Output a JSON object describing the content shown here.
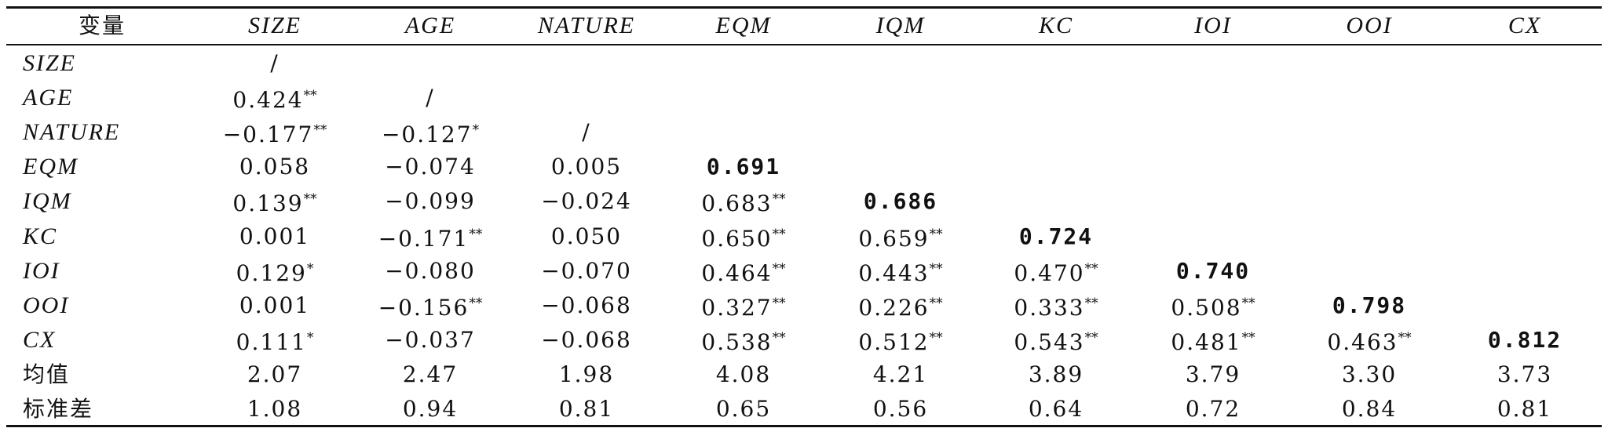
{
  "table": {
    "header": [
      "变量",
      "SIZE",
      "AGE",
      "NATURE",
      "EQM",
      "IQM",
      "KC",
      "IOI",
      "OOI",
      "CX"
    ],
    "rows": [
      {
        "label": "SIZE",
        "cells": [
          {
            "v": "/"
          }
        ]
      },
      {
        "label": "AGE",
        "cells": [
          {
            "v": "0.424",
            "sig": "**"
          },
          {
            "v": "/"
          }
        ]
      },
      {
        "label": "NATURE",
        "cells": [
          {
            "v": "−0.177",
            "sig": "**"
          },
          {
            "v": "−0.127",
            "sig": "*"
          },
          {
            "v": "/"
          }
        ]
      },
      {
        "label": "EQM",
        "cells": [
          {
            "v": "0.058"
          },
          {
            "v": "−0.074"
          },
          {
            "v": "0.005"
          },
          {
            "v": "0.691",
            "bold": true
          }
        ]
      },
      {
        "label": "IQM",
        "cells": [
          {
            "v": "0.139",
            "sig": "**"
          },
          {
            "v": "−0.099"
          },
          {
            "v": "−0.024"
          },
          {
            "v": "0.683",
            "sig": "**"
          },
          {
            "v": "0.686",
            "bold": true
          }
        ]
      },
      {
        "label": "KC",
        "cells": [
          {
            "v": "0.001"
          },
          {
            "v": "−0.171",
            "sig": "**"
          },
          {
            "v": "0.050"
          },
          {
            "v": "0.650",
            "sig": "**"
          },
          {
            "v": "0.659",
            "sig": "**"
          },
          {
            "v": "0.724",
            "bold": true
          }
        ]
      },
      {
        "label": "IOI",
        "cells": [
          {
            "v": "0.129",
            "sig": "*"
          },
          {
            "v": "−0.080"
          },
          {
            "v": "−0.070"
          },
          {
            "v": "0.464",
            "sig": "**"
          },
          {
            "v": "0.443",
            "sig": "**"
          },
          {
            "v": "0.470",
            "sig": "**"
          },
          {
            "v": "0.740",
            "bold": true
          }
        ]
      },
      {
        "label": "OOI",
        "cells": [
          {
            "v": "0.001"
          },
          {
            "v": "−0.156",
            "sig": "**"
          },
          {
            "v": "−0.068"
          },
          {
            "v": "0.327",
            "sig": "**"
          },
          {
            "v": "0.226",
            "sig": "**"
          },
          {
            "v": "0.333",
            "sig": "**"
          },
          {
            "v": "0.508",
            "sig": "**"
          },
          {
            "v": "0.798",
            "bold": true
          }
        ]
      },
      {
        "label": "CX",
        "cells": [
          {
            "v": "0.111",
            "sig": "*"
          },
          {
            "v": "−0.037"
          },
          {
            "v": "−0.068"
          },
          {
            "v": "0.538",
            "sig": "**"
          },
          {
            "v": "0.512",
            "sig": "**"
          },
          {
            "v": "0.543",
            "sig": "**"
          },
          {
            "v": "0.481",
            "sig": "**"
          },
          {
            "v": "0.463",
            "sig": "**"
          },
          {
            "v": "0.812",
            "bold": true
          }
        ]
      },
      {
        "label": "均值",
        "cells": [
          {
            "v": "2.07"
          },
          {
            "v": "2.47"
          },
          {
            "v": "1.98"
          },
          {
            "v": "4.08"
          },
          {
            "v": "4.21"
          },
          {
            "v": "3.89"
          },
          {
            "v": "3.79"
          },
          {
            "v": "3.30"
          },
          {
            "v": "3.73"
          }
        ]
      },
      {
        "label": "标准差",
        "cells": [
          {
            "v": "1.08"
          },
          {
            "v": "0.94"
          },
          {
            "v": "0.81"
          },
          {
            "v": "0.65"
          },
          {
            "v": "0.56"
          },
          {
            "v": "0.64"
          },
          {
            "v": "0.72"
          },
          {
            "v": "0.84"
          },
          {
            "v": "0.81"
          }
        ]
      }
    ]
  }
}
